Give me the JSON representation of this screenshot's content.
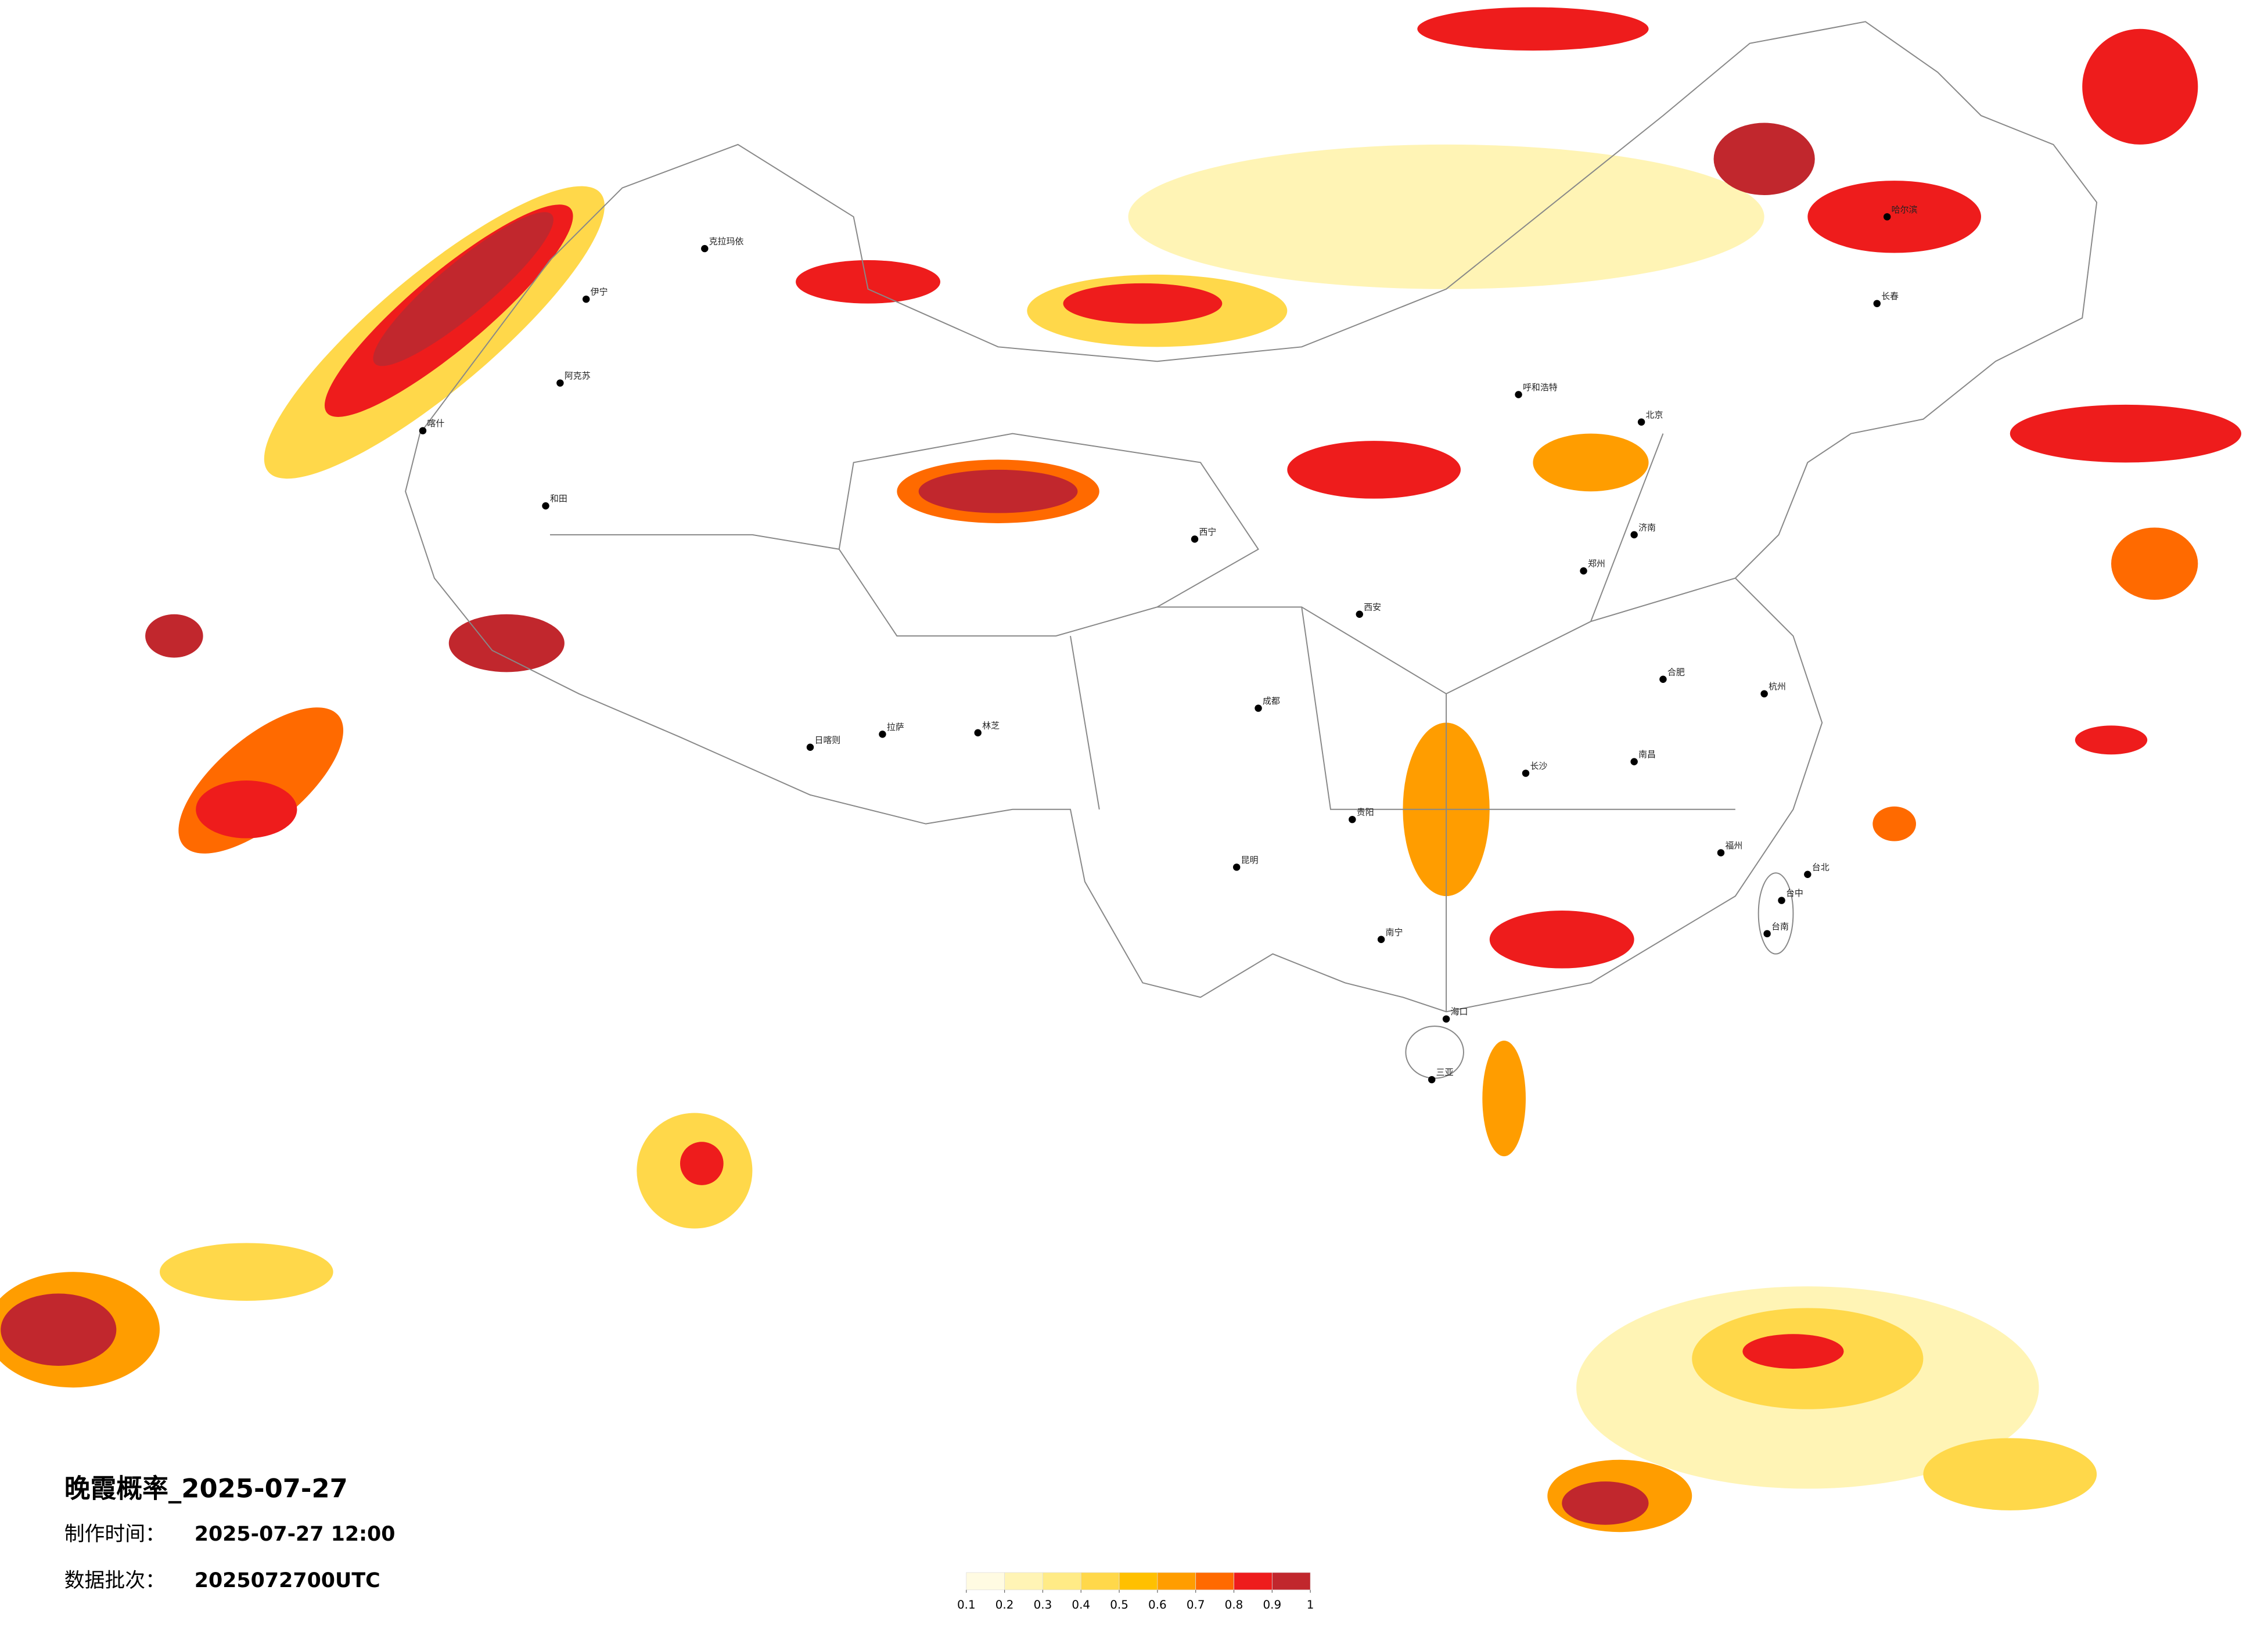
{
  "title": "晚霞概率_2025-07-27",
  "produced": {
    "label": "制作时间：",
    "value": "2025-07-27 12:00"
  },
  "batch": {
    "label": "数据批次：",
    "value": "2025072700UTC"
  },
  "legend": {
    "ticks": [
      0.1,
      0.2,
      0.3,
      0.4,
      0.5,
      0.6,
      0.7,
      0.8,
      0.9,
      1
    ],
    "colors": [
      "#fffbe2",
      "#fff4b5",
      "#ffeb86",
      "#ffd84a",
      "#ffc000",
      "#ff9d00",
      "#ff6a00",
      "#ee1c1c",
      "#c1272d"
    ]
  },
  "cities": [
    "克拉玛依",
    "伊宁",
    "阿克苏",
    "和田",
    "喀什",
    "拉萨",
    "日喀则",
    "林芝",
    "西宁",
    "呼和浩特",
    "北京",
    "长春",
    "哈尔滨",
    "郑州",
    "贵阳",
    "昆明",
    "南宁",
    "海口",
    "三亚",
    "台北",
    "台中",
    "台南",
    "济南",
    "南昌",
    "长沙",
    "福州",
    "杭州",
    "合肥",
    "西安",
    "成都"
  ]
}
